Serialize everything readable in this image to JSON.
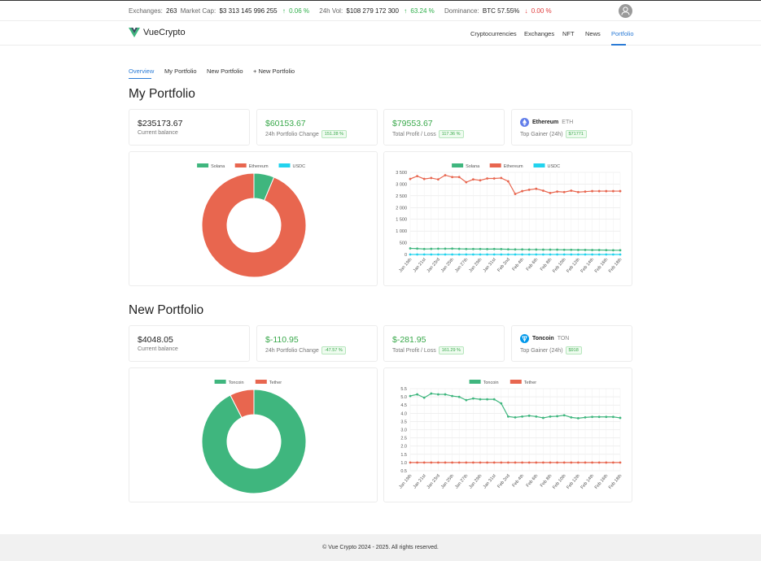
{
  "topbar": {
    "exchanges_label": "Exchanges:",
    "exchanges_value": "263",
    "marketcap_label": "Market Cap:",
    "marketcap_value": "$3 313 145 996 255",
    "marketcap_change": "0.06 %",
    "vol_label": "24h Vol:",
    "vol_value": "$108 279 172 300",
    "vol_change": "63.24 %",
    "dominance_label": "Dominance:",
    "dominance_value": "BTC 57.55%",
    "dominance_change": "0.00 %"
  },
  "nav": {
    "brand": "VueCrypto",
    "items": [
      "Cryptocurrencies",
      "Exchanges",
      "NFT",
      "News",
      "Portfolio"
    ],
    "active": "Portfolio"
  },
  "tabs": [
    "Overview",
    "My Portfolio",
    "New Portfolio",
    "+ New Portfolio"
  ],
  "portfolios": [
    {
      "title": "My Portfolio",
      "balance": "$235173.67",
      "balance_label": "Current balance",
      "change": "$60153.67",
      "change_label": "24h Portfolio Change",
      "change_badge": "151.28 %",
      "profit": "$79553.67",
      "profit_label": "Total Profit / Loss",
      "profit_badge": "117.36 %",
      "gainer_name": "Ethereum",
      "gainer_ticker": "ETH",
      "gainer_label": "Top Gainer (24h)",
      "gainer_badge": "$71771",
      "colors": {
        "eth": "#627eea"
      }
    },
    {
      "title": "New Portfolio",
      "balance": "$4048.05",
      "balance_label": "Current balance",
      "change": "$-110.95",
      "change_label": "24h Portfolio Change",
      "change_badge": "-47.57 %",
      "profit": "$-281.95",
      "profit_label": "Total Profit / Loss",
      "profit_badge": "161.29 %",
      "gainer_name": "Toncoin",
      "gainer_ticker": "TON",
      "gainer_label": "Top Gainer (24h)",
      "gainer_badge": "$918",
      "colors": {
        "ton": "#0098ea"
      }
    }
  ],
  "footer": "© Vue Crypto 2024 - 2025. All rights reserved.",
  "chart_data": [
    {
      "type": "pie",
      "subtype": "doughnut",
      "legend": [
        "Solana",
        "Ethereum",
        "USDC"
      ],
      "colors": [
        "#3fb67e",
        "#e8664f",
        "#22d3ee"
      ],
      "values": [
        6.3,
        93.7,
        0
      ],
      "legend_position": "top"
    },
    {
      "type": "line",
      "legend_position": "top",
      "x": [
        "Jan 19th",
        "Jan 20th",
        "Jan 21st",
        "Jan 22nd",
        "Jan 23rd",
        "Jan 24th",
        "Jan 25th",
        "Jan 26th",
        "Jan 27th",
        "Jan 28th",
        "Jan 29th",
        "Jan 30th",
        "Jan 31st",
        "Feb 1st",
        "Feb 2nd",
        "Feb 3rd",
        "Feb 4th",
        "Feb 5th",
        "Feb 6th",
        "Feb 7th",
        "Feb 8th",
        "Feb 9th",
        "Feb 10th",
        "Feb 11th",
        "Feb 12th",
        "Feb 13th",
        "Feb 14th",
        "Feb 15th",
        "Feb 16th",
        "Feb 17th",
        "Feb 18th"
      ],
      "xticks": [
        "Jan 19th",
        "Jan 21st",
        "Jan 23rd",
        "Jan 25th",
        "Jan 27th",
        "Jan 29th",
        "Jan 31st",
        "Feb 2nd",
        "Feb 4th",
        "Feb 6th",
        "Feb 8th",
        "Feb 10th",
        "Feb 12th",
        "Feb 14th",
        "Feb 16th",
        "Feb 18th"
      ],
      "yticks": [
        "3 500",
        "3 000",
        "2 500",
        "2 000",
        "1 500",
        "1 000",
        "500",
        "0"
      ],
      "ylim": [
        0,
        3500
      ],
      "grid": true,
      "series": [
        {
          "name": "Solana",
          "color": "#3fb67e",
          "values": [
            260,
            250,
            235,
            240,
            245,
            245,
            250,
            240,
            235,
            235,
            235,
            230,
            235,
            230,
            220,
            215,
            215,
            210,
            210,
            205,
            205,
            205,
            200,
            200,
            195,
            195,
            190,
            190,
            185,
            180,
            180
          ]
        },
        {
          "name": "Ethereum",
          "color": "#e8664f",
          "values": [
            3220,
            3340,
            3220,
            3260,
            3200,
            3380,
            3300,
            3300,
            3080,
            3200,
            3160,
            3240,
            3240,
            3260,
            3120,
            2580,
            2700,
            2760,
            2800,
            2720,
            2620,
            2680,
            2660,
            2720,
            2660,
            2680,
            2700,
            2700,
            2700,
            2700,
            2700
          ]
        },
        {
          "name": "USDC",
          "color": "#22d3ee",
          "values": [
            0,
            0,
            0,
            0,
            0,
            0,
            0,
            0,
            0,
            0,
            0,
            0,
            0,
            0,
            0,
            0,
            0,
            0,
            0,
            0,
            0,
            0,
            0,
            0,
            0,
            0,
            0,
            0,
            0,
            0,
            0
          ]
        }
      ]
    },
    {
      "type": "pie",
      "legend": [
        "Toncoin",
        "Tether"
      ],
      "colors": [
        "#3fb67e",
        "#e8664f"
      ],
      "values": [
        92.5,
        7.5
      ],
      "legend_position": "top"
    },
    {
      "type": "line",
      "legend_position": "top",
      "x": [
        "Jan 19th",
        "Jan 20th",
        "Jan 21st",
        "Jan 22nd",
        "Jan 23rd",
        "Jan 24th",
        "Jan 25th",
        "Jan 26th",
        "Jan 27th",
        "Jan 28th",
        "Jan 29th",
        "Jan 30th",
        "Jan 31st",
        "Feb 1st",
        "Feb 2nd",
        "Feb 3rd",
        "Feb 4th",
        "Feb 5th",
        "Feb 6th",
        "Feb 7th",
        "Feb 8th",
        "Feb 9th",
        "Feb 10th",
        "Feb 11th",
        "Feb 12th",
        "Feb 13th",
        "Feb 14th",
        "Feb 15th",
        "Feb 16th",
        "Feb 17th",
        "Feb 18th"
      ],
      "xticks": [
        "Jan 19th",
        "Jan 21st",
        "Jan 23rd",
        "Jan 25th",
        "Jan 27th",
        "Jan 29th",
        "Jan 31st",
        "Feb 2nd",
        "Feb 4th",
        "Feb 6th",
        "Feb 8th",
        "Feb 10th",
        "Feb 12th",
        "Feb 14th",
        "Feb 16th",
        "Feb 18th"
      ],
      "yticks": [
        "5.5",
        "5.0",
        "4.5",
        "4.0",
        "3.5",
        "3.0",
        "2.5",
        "2.0",
        "1.5",
        "1.0",
        "0.5"
      ],
      "ylim": [
        0.5,
        5.5
      ],
      "grid": true,
      "series": [
        {
          "name": "Toncoin",
          "color": "#3fb67e",
          "values": [
            5.05,
            5.15,
            4.95,
            5.2,
            5.15,
            5.15,
            5.05,
            5.0,
            4.8,
            4.9,
            4.85,
            4.85,
            4.85,
            4.6,
            3.8,
            3.75,
            3.8,
            3.85,
            3.8,
            3.72,
            3.8,
            3.82,
            3.88,
            3.75,
            3.7,
            3.75,
            3.78,
            3.78,
            3.78,
            3.78,
            3.72
          ]
        },
        {
          "name": "Tether",
          "color": "#e8664f",
          "values": [
            1,
            1,
            1,
            1,
            1,
            1,
            1,
            1,
            1,
            1,
            1,
            1,
            1,
            1,
            1,
            1,
            1,
            1,
            1,
            1,
            1,
            1,
            1,
            1,
            1,
            1,
            1,
            1,
            1,
            1,
            1
          ]
        }
      ]
    }
  ]
}
